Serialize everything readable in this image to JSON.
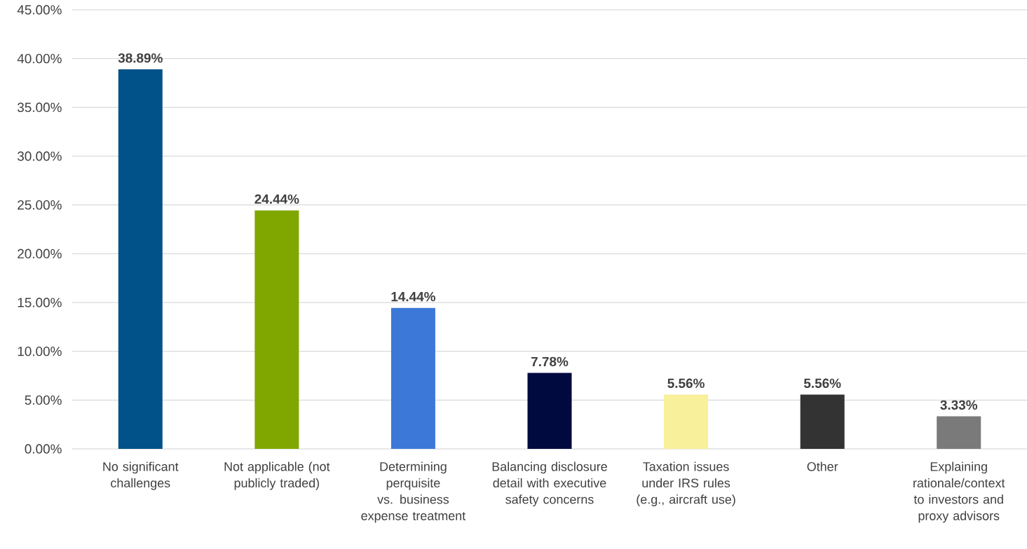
{
  "chart_data": {
    "type": "bar",
    "categories": [
      "No significant challenges",
      "Not applicable (not publicly traded)",
      "Determining perquisite vs. business expense treatment",
      "Balancing disclosure detail with executive safety concerns",
      "Taxation issues under IRS rules (e.g., aircraft use)",
      "Other",
      "Explaining rationale/context to investors and proxy advisors"
    ],
    "values": [
      38.89,
      24.44,
      14.44,
      7.78,
      5.56,
      5.56,
      3.33
    ],
    "value_labels": [
      "38.89%",
      "24.44%",
      "14.44%",
      "7.78%",
      "5.56%",
      "5.56%",
      "3.33%"
    ],
    "colors": [
      "#005288",
      "#80a600",
      "#3c78d8",
      "#000a3f",
      "#f8f09a",
      "#333333",
      "#7a7a7a"
    ],
    "ylim": [
      0,
      45
    ],
    "yticks": [
      {
        "value": 0,
        "label": "0.00%"
      },
      {
        "value": 5,
        "label": "5.00%"
      },
      {
        "value": 10,
        "label": "10.00%"
      },
      {
        "value": 15,
        "label": "15.00%"
      },
      {
        "value": 20,
        "label": "20.00%"
      },
      {
        "value": 25,
        "label": "25.00%"
      },
      {
        "value": 30,
        "label": "30.00%"
      },
      {
        "value": 35,
        "label": "35.00%"
      },
      {
        "value": 40,
        "label": "40.00%"
      },
      {
        "value": 45,
        "label": "45.00%"
      }
    ],
    "grid": "y"
  }
}
